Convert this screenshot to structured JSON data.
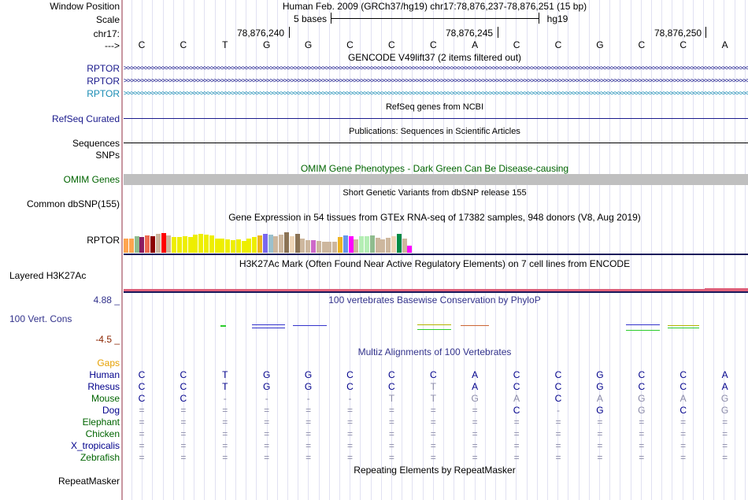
{
  "window_position": {
    "label": "Window Position",
    "title": "Human Feb. 2009 (GRCh37/hg19)   chr17:78,876,237-78,876,251 (15 bp)"
  },
  "scale": {
    "label": "Scale",
    "length": "5 bases",
    "assembly": "hg19"
  },
  "ruler": {
    "chrom_label": "chr17:",
    "strand_label": "--->",
    "positions": [
      "78,876,240",
      "78,876,245",
      "78,876,250"
    ]
  },
  "sequence": [
    "C",
    "C",
    "T",
    "G",
    "G",
    "C",
    "C",
    "C",
    "A",
    "C",
    "C",
    "G",
    "C",
    "C",
    "A"
  ],
  "gencode": {
    "title": "GENCODE V49lift37 (2 items filtered out)",
    "genes": [
      {
        "name": "RPTOR",
        "color": "#1a1a8c"
      },
      {
        "name": "RPTOR",
        "color": "#1a1a8c"
      },
      {
        "name": "RPTOR",
        "color": "#1a8cb4"
      }
    ]
  },
  "refseq": {
    "title": "RefSeq genes from NCBI",
    "label": "RefSeq Curated"
  },
  "publications": {
    "title": "Publications: Sequences in Scientific Articles",
    "label": "Sequences"
  },
  "snps": {
    "label": "SNPs"
  },
  "omim": {
    "title": "OMIM Gene Phenotypes - Dark Green Can Be Disease-causing",
    "label": "OMIM Genes",
    "color": "#006400"
  },
  "dbsnp": {
    "title": "Short Genetic Variants from dbSNP release 155",
    "label": "Common dbSNP(155)"
  },
  "gtex": {
    "title": "Gene Expression in 54 tissues from GTEx RNA-seq of 17382 samples, 948 donors (V8, Aug 2019)",
    "label": "RPTOR",
    "levels": [
      0.53,
      0.53,
      0.62,
      0.59,
      0.65,
      0.62,
      0.71,
      0.74,
      0.65,
      0.59,
      0.59,
      0.62,
      0.59,
      0.68,
      0.71,
      0.68,
      0.65,
      0.53,
      0.53,
      0.5,
      0.47,
      0.5,
      0.44,
      0.53,
      0.59,
      0.65,
      0.71,
      0.68,
      0.62,
      0.68,
      0.77,
      0.62,
      0.71,
      0.53,
      0.47,
      0.47,
      0.44,
      0.41,
      0.41,
      0.41,
      0.59,
      0.65,
      0.62,
      0.5,
      0.62,
      0.62,
      0.65,
      0.56,
      0.5,
      0.56,
      0.62,
      0.71,
      0.53,
      0.26
    ],
    "colors": [
      "#ffa54f",
      "#ffa54f",
      "#8fbc8f",
      "#8b1c62",
      "#ee6a50",
      "#8b0000",
      "#cdb79e",
      "#ff0000",
      "#cdb79e",
      "#eeee00",
      "#eeee00",
      "#eeee00",
      "#eeee00",
      "#eeee00",
      "#eeee00",
      "#eeee00",
      "#eeee00",
      "#eeee00",
      "#eeee00",
      "#eeee00",
      "#eeee00",
      "#eeee00",
      "#eeee00",
      "#eeee00",
      "#eeee00",
      "#eeb422",
      "#7a67ee",
      "#9ac0cd",
      "#cdb79e",
      "#cdb79e",
      "#8b7355",
      "#eed5b7",
      "#8b7355",
      "#cdb79e",
      "#cdb79e",
      "#cd69c9",
      "#cdb79e",
      "#cdb79e",
      "#cdb79e",
      "#cdb79e",
      "#eeb422",
      "#6495ed",
      "#ff00ff",
      "#cdb79e",
      "#b4eeb4",
      "#b4eeb4",
      "#8fbc8f",
      "#cdb79e",
      "#cdb79e",
      "#cdb79e",
      "#eed5b7",
      "#008b45",
      "#cdb79e",
      "#ff00ff"
    ]
  },
  "h3k27ac": {
    "title": "H3K27Ac Mark (Often Found Near Active Regulatory Elements) on 7 cell lines from ENCODE",
    "label": "Layered H3K27Ac"
  },
  "conservation": {
    "title": "100 vertebrates Basewise Conservation by PhyloP",
    "label": "100 Vert. Cons",
    "max": "4.88 _",
    "min": "-4.5 _"
  },
  "multiz": {
    "title": "Multiz Alignments of 100 Vertebrates",
    "gaps_label": "Gaps",
    "species": [
      {
        "name": "Human",
        "color": "#00008b",
        "bases": [
          "C",
          "C",
          "T",
          "G",
          "G",
          "C",
          "C",
          "C",
          "A",
          "C",
          "C",
          "G",
          "C",
          "C",
          "A"
        ]
      },
      {
        "name": "Rhesus",
        "color": "#00008b",
        "bases": [
          "C",
          "C",
          "T",
          "G",
          "G",
          "C",
          "C",
          "T",
          "A",
          "C",
          "C",
          "G",
          "C",
          "C",
          "A"
        ]
      },
      {
        "name": "Mouse",
        "color": "#006400",
        "bases": [
          "C",
          "C",
          "-",
          "-",
          "-",
          "-",
          "T",
          "T",
          "G",
          "A",
          "C",
          "A",
          "G",
          "A",
          "G"
        ]
      },
      {
        "name": "Dog",
        "color": "#00008b",
        "bases": [
          "=",
          "=",
          "=",
          "=",
          "=",
          "=",
          "=",
          "=",
          "=",
          "C",
          "-",
          "G",
          "G",
          "C",
          "G"
        ]
      },
      {
        "name": "Elephant",
        "color": "#006400",
        "bases": [
          "=",
          "=",
          "=",
          "=",
          "=",
          "=",
          "=",
          "=",
          "=",
          "=",
          "=",
          "=",
          "=",
          "=",
          "="
        ]
      },
      {
        "name": "Chicken",
        "color": "#006400",
        "bases": [
          "=",
          "=",
          "=",
          "=",
          "=",
          "=",
          "=",
          "=",
          "=",
          "=",
          "=",
          "=",
          "=",
          "=",
          "="
        ]
      },
      {
        "name": "X_tropicalis",
        "color": "#00008b",
        "bases": [
          "=",
          "=",
          "=",
          "=",
          "=",
          "=",
          "=",
          "=",
          "=",
          "=",
          "=",
          "=",
          "=",
          "=",
          "="
        ]
      },
      {
        "name": "Zebrafish",
        "color": "#006400",
        "bases": [
          "=",
          "=",
          "=",
          "=",
          "=",
          "=",
          "=",
          "=",
          "=",
          "=",
          "=",
          "=",
          "=",
          "=",
          "="
        ]
      }
    ]
  },
  "repeatmasker": {
    "title": "Repeating Elements by RepeatMasker",
    "label": "RepeatMasker"
  }
}
